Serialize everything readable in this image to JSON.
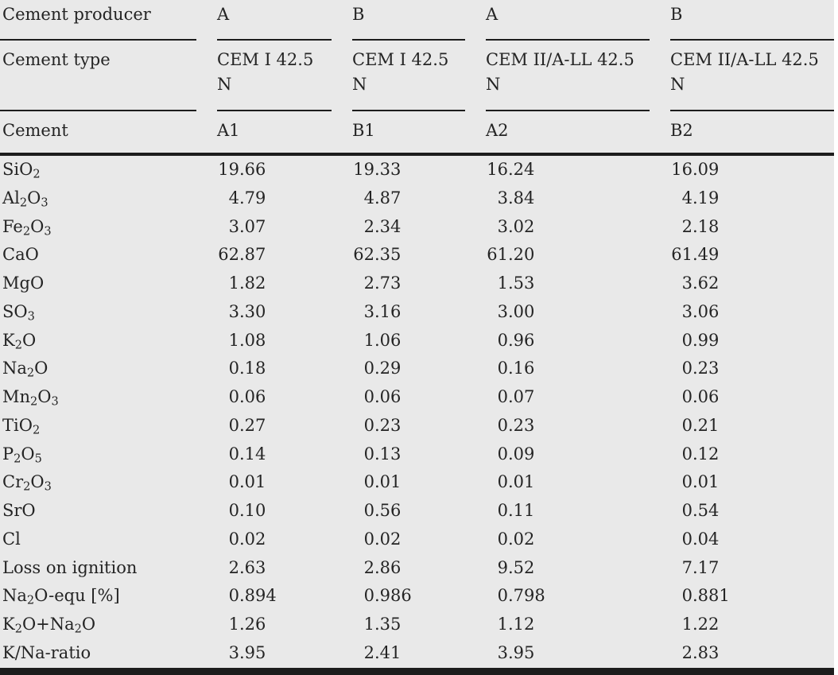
{
  "colors": {
    "table_background": "#e9e9e9",
    "page_background": "#ffffff",
    "rule": "#1c1c1c",
    "text": "#242424"
  },
  "header": {
    "row1": {
      "label": "Cement producer",
      "values": [
        "A",
        "B",
        "A",
        "B"
      ]
    },
    "row2": {
      "label": "Cement type",
      "values": [
        [
          "CEM I 42.5",
          "N"
        ],
        [
          "CEM I 42.5",
          "N"
        ],
        [
          "CEM II/A-LL 42.5",
          "N"
        ],
        [
          "CEM II/A-LL 42.5",
          "N"
        ]
      ]
    },
    "row3": {
      "label": "Cement",
      "values": [
        "A1",
        "B1",
        "A2",
        "B2"
      ]
    }
  },
  "rows": [
    {
      "label": [
        [
          "SiO"
        ],
        [
          "2",
          "sub"
        ]
      ],
      "values": [
        "19.66",
        "19.33",
        "16.24",
        "16.09"
      ]
    },
    {
      "label": [
        [
          "Al"
        ],
        [
          "2",
          "sub"
        ],
        [
          "O"
        ],
        [
          "3",
          "sub"
        ]
      ],
      "values": [
        "4.79",
        "4.87",
        "3.84",
        "4.19"
      ]
    },
    {
      "label": [
        [
          "Fe"
        ],
        [
          "2",
          "sub"
        ],
        [
          "O"
        ],
        [
          "3",
          "sub"
        ]
      ],
      "values": [
        "3.07",
        "2.34",
        "3.02",
        "2.18"
      ]
    },
    {
      "label": [
        [
          "CaO"
        ]
      ],
      "values": [
        "62.87",
        "62.35",
        "61.20",
        "61.49"
      ]
    },
    {
      "label": [
        [
          "MgO"
        ]
      ],
      "values": [
        "1.82",
        "2.73",
        "1.53",
        "3.62"
      ]
    },
    {
      "label": [
        [
          "SO"
        ],
        [
          "3",
          "sub"
        ]
      ],
      "values": [
        "3.30",
        "3.16",
        "3.00",
        "3.06"
      ]
    },
    {
      "label": [
        [
          "K"
        ],
        [
          "2",
          "sub"
        ],
        [
          "O"
        ]
      ],
      "values": [
        "1.08",
        "1.06",
        "0.96",
        "0.99"
      ]
    },
    {
      "label": [
        [
          "Na"
        ],
        [
          "2",
          "sub"
        ],
        [
          "O"
        ]
      ],
      "values": [
        "0.18",
        "0.29",
        "0.16",
        "0.23"
      ]
    },
    {
      "label": [
        [
          "Mn"
        ],
        [
          "2",
          "sub"
        ],
        [
          "O"
        ],
        [
          "3",
          "sub"
        ]
      ],
      "values": [
        "0.06",
        "0.06",
        "0.07",
        "0.06"
      ]
    },
    {
      "label": [
        [
          "TiO"
        ],
        [
          "2",
          "sub"
        ]
      ],
      "values": [
        "0.27",
        "0.23",
        "0.23",
        "0.21"
      ]
    },
    {
      "label": [
        [
          "P"
        ],
        [
          "2",
          "sub"
        ],
        [
          "O"
        ],
        [
          "5",
          "sub"
        ]
      ],
      "values": [
        "0.14",
        "0.13",
        "0.09",
        "0.12"
      ]
    },
    {
      "label": [
        [
          "Cr"
        ],
        [
          "2",
          "sub"
        ],
        [
          "O"
        ],
        [
          "3",
          "sub"
        ]
      ],
      "values": [
        "0.01",
        "0.01",
        "0.01",
        "0.01"
      ]
    },
    {
      "label": [
        [
          "SrO"
        ]
      ],
      "values": [
        "0.10",
        "0.56",
        "0.11",
        "0.54"
      ]
    },
    {
      "label": [
        [
          "Cl"
        ]
      ],
      "values": [
        "0.02",
        "0.02",
        "0.02",
        "0.04"
      ]
    },
    {
      "label": [
        [
          "Loss on ignition"
        ]
      ],
      "values": [
        "2.63",
        "2.86",
        "9.52",
        "7.17"
      ]
    },
    {
      "label": [
        [
          "Na"
        ],
        [
          "2",
          "sub"
        ],
        [
          "O-equ [%]"
        ]
      ],
      "values": [
        "0.894",
        "0.986",
        "0.798",
        "0.881"
      ]
    },
    {
      "label": [
        [
          "K"
        ],
        [
          "2",
          "sub"
        ],
        [
          "O+Na"
        ],
        [
          "2",
          "sub"
        ],
        [
          "O"
        ]
      ],
      "values": [
        "1.26",
        "1.35",
        "1.12",
        "1.22"
      ]
    },
    {
      "label": [
        [
          "K/Na-ratio"
        ]
      ],
      "values": [
        "3.95",
        "2.41",
        "3.95",
        "2.83"
      ]
    }
  ]
}
